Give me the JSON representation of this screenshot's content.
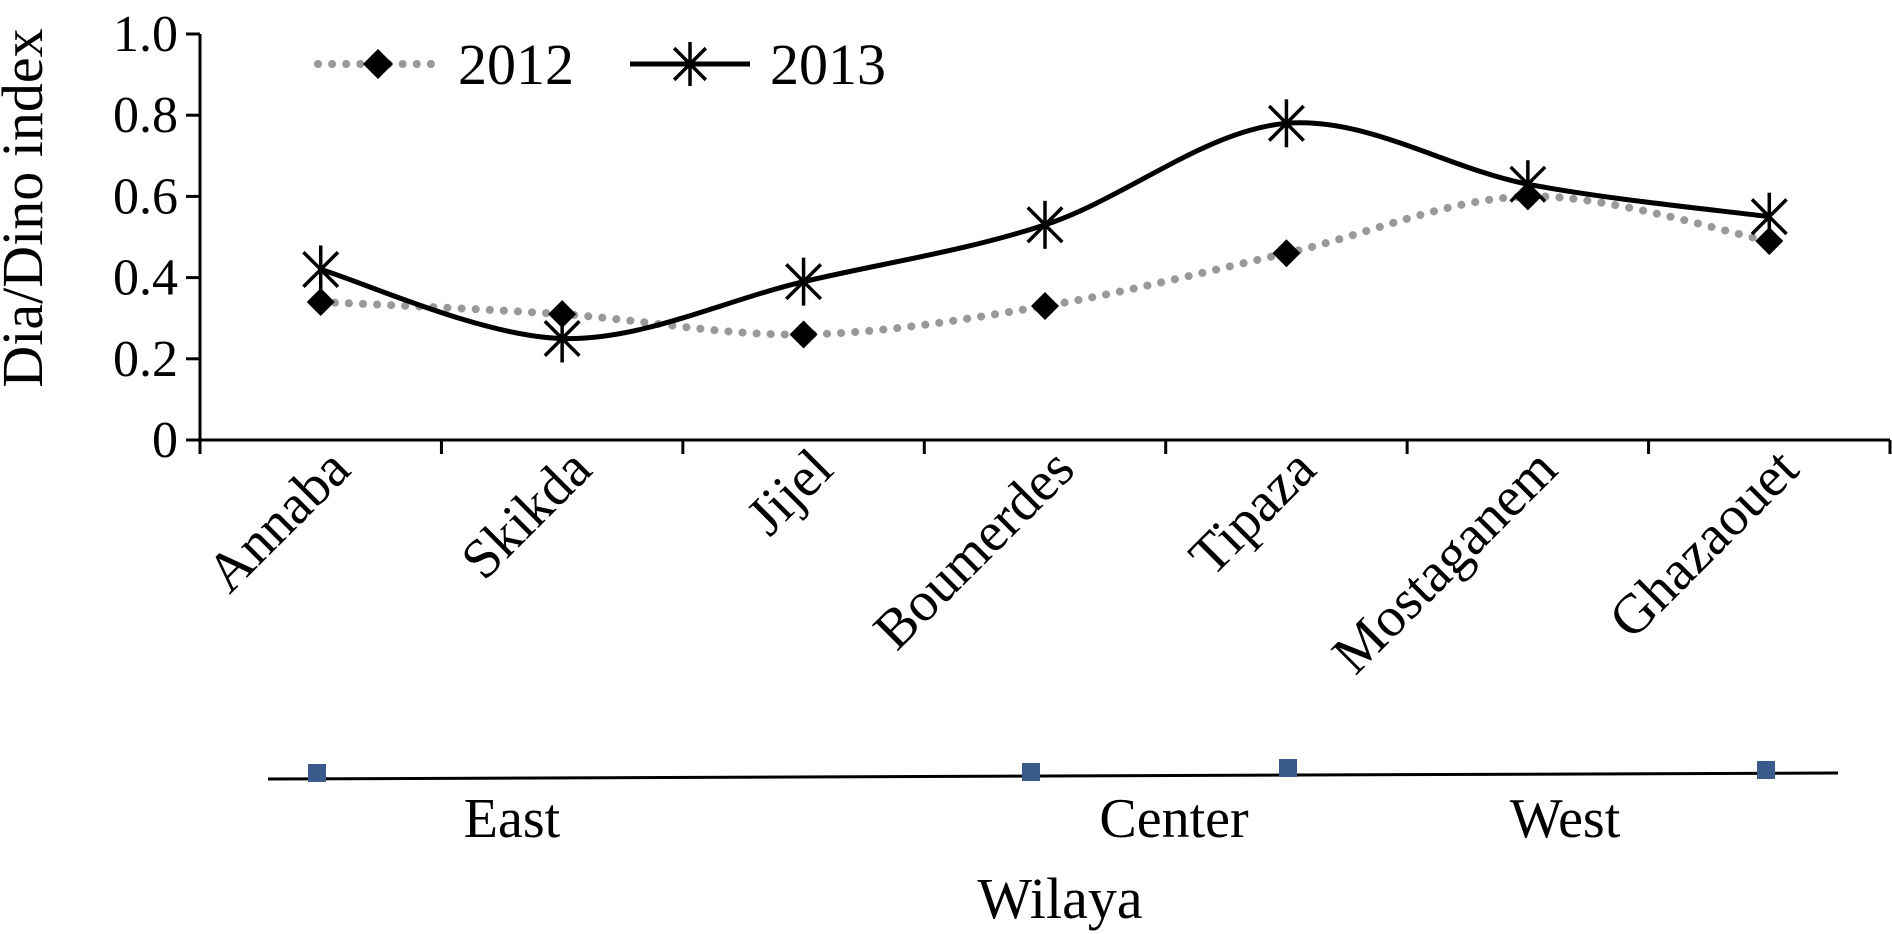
{
  "chart_data": {
    "type": "line",
    "xlabel": "Wilaya",
    "ylabel": "Dia/Dino index",
    "ylim": [
      0,
      1.0
    ],
    "y_ticks": [
      "0",
      "0.2",
      "0.4",
      "0.6",
      "0.8",
      "1.0"
    ],
    "categories": [
      "Annaba",
      "Skikda",
      "Jijel",
      "Boumerdes",
      "Tipaza",
      "Mostaganem",
      "Ghazaouet"
    ],
    "series": [
      {
        "name": "2012",
        "values": [
          0.34,
          0.31,
          0.26,
          0.33,
          0.46,
          0.6,
          0.49
        ],
        "style": "dotted",
        "marker": "diamond",
        "color": "#999999"
      },
      {
        "name": "2013",
        "values": [
          0.42,
          0.25,
          0.39,
          0.53,
          0.78,
          0.63,
          0.55
        ],
        "style": "solid-smooth",
        "marker": "asterisk",
        "color": "#000000"
      }
    ],
    "regions": [
      "East",
      "Center",
      "West"
    ],
    "region_marker_color": "#3a5a8c",
    "legend_placement": "top-left",
    "grid": false
  }
}
